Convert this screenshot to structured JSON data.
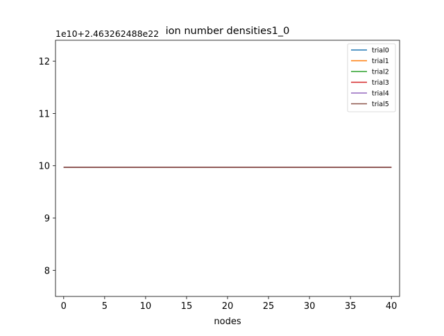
{
  "chart_data": {
    "type": "line",
    "title": "ion number densities1_0",
    "xlabel": "nodes",
    "ylabel": "",
    "offset_text": "1e10+2.463262488e22",
    "xlim": [
      -1,
      41
    ],
    "ylim": [
      7.5,
      12.4
    ],
    "xticks": [
      0,
      5,
      10,
      15,
      20,
      25,
      30,
      35,
      40
    ],
    "yticks": [
      8,
      9,
      10,
      11,
      12
    ],
    "grid": false,
    "legend_position": "top-right",
    "x": [
      0,
      40
    ],
    "series": [
      {
        "name": "trial0",
        "color": "#1f77b4",
        "values": [
          9.97,
          9.97
        ]
      },
      {
        "name": "trial1",
        "color": "#ff7f0e",
        "values": [
          9.97,
          9.97
        ]
      },
      {
        "name": "trial2",
        "color": "#2ca02c",
        "values": [
          9.97,
          9.97
        ]
      },
      {
        "name": "trial3",
        "color": "#d62728",
        "values": [
          9.97,
          9.97
        ]
      },
      {
        "name": "trial4",
        "color": "#9467bd",
        "values": [
          9.97,
          9.97
        ]
      },
      {
        "name": "trial5",
        "color": "#8c564b",
        "values": [
          9.97,
          9.97
        ]
      }
    ]
  }
}
